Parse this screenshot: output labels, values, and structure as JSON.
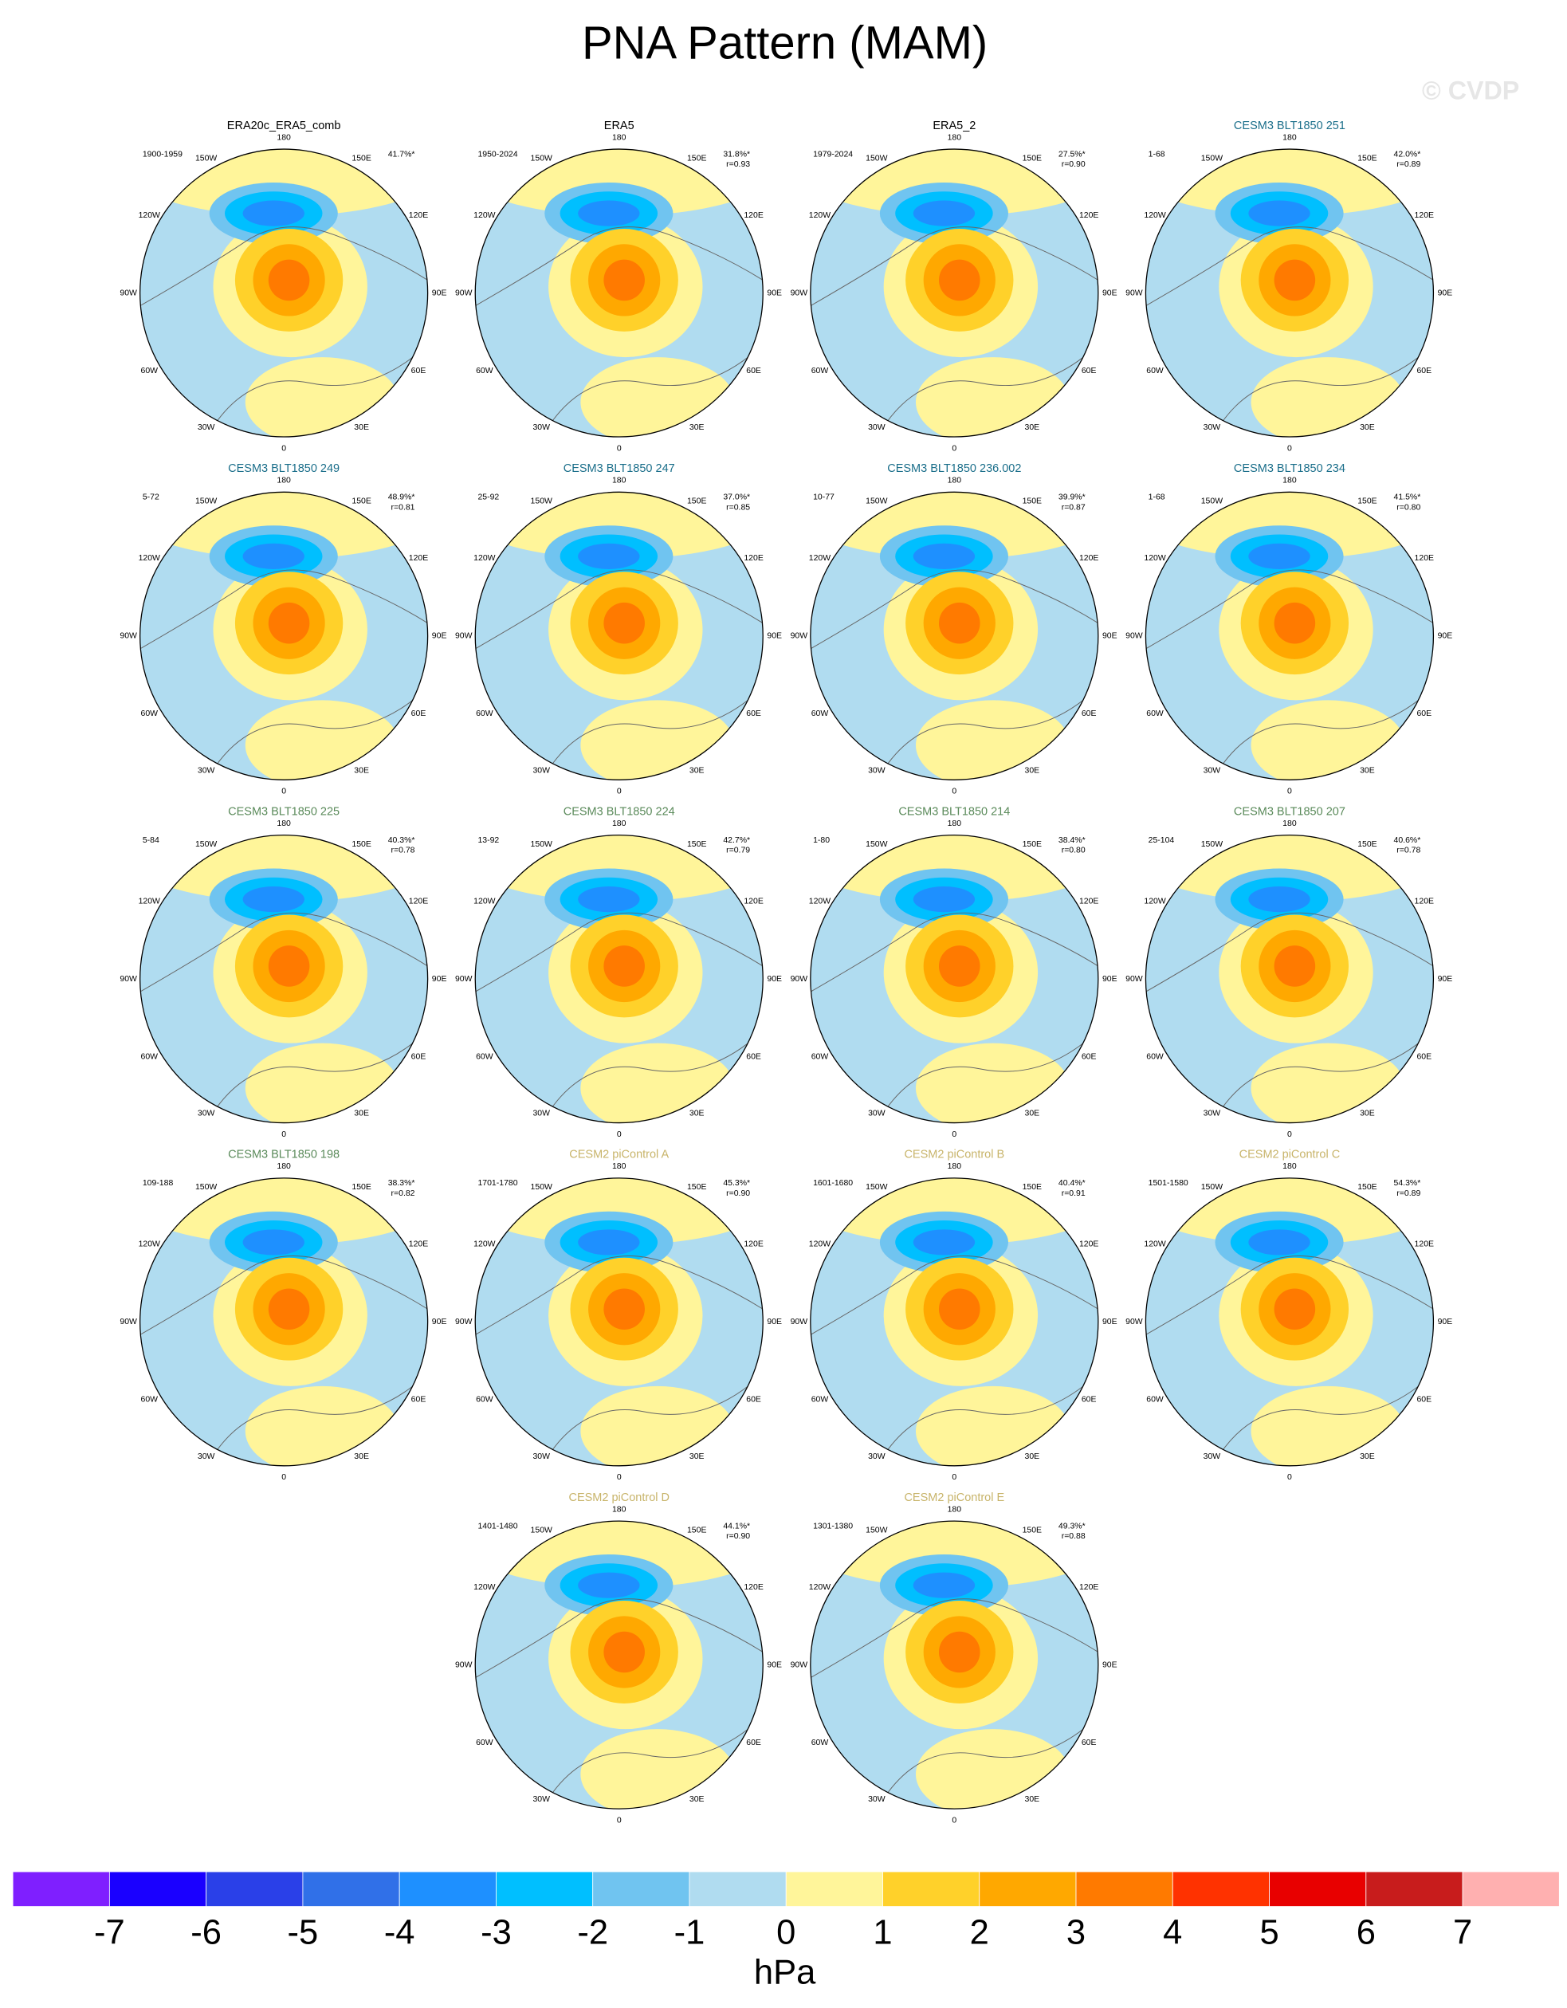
{
  "title": "PNA Pattern (MAM)",
  "watermark": "© CVDP",
  "lon_labels": [
    "180",
    "150E",
    "120E",
    "90E",
    "60E",
    "30E",
    "0",
    "30W",
    "60W",
    "90W",
    "120W",
    "150W"
  ],
  "panels": [
    {
      "title": "ERA20c_ERA5_comb",
      "color": "#000000",
      "years": "1900-1959",
      "pct": "41.7%*"
    },
    {
      "title": "ERA5",
      "color": "#000000",
      "years": "1950-2024",
      "pct": "31.8%*",
      "r": "r=0.93"
    },
    {
      "title": "ERA5_2",
      "color": "#000000",
      "years": "1979-2024",
      "pct": "27.5%*",
      "r": "r=0.90"
    },
    {
      "title": "CESM3 BLT1850 251",
      "color": "#1a6e8a",
      "years": "1-68",
      "pct": "42.0%*",
      "r": "r=0.89"
    },
    {
      "title": "CESM3 BLT1850 249",
      "color": "#1a6e8a",
      "years": "5-72",
      "pct": "48.9%*",
      "r": "r=0.81"
    },
    {
      "title": "CESM3 BLT1850 247",
      "color": "#1a6e8a",
      "years": "25-92",
      "pct": "37.0%*",
      "r": "r=0.85"
    },
    {
      "title": "CESM3 BLT1850 236.002",
      "color": "#1a6e8a",
      "years": "10-77",
      "pct": "39.9%*",
      "r": "r=0.87"
    },
    {
      "title": "CESM3 BLT1850 234",
      "color": "#1a6e8a",
      "years": "1-68",
      "pct": "41.5%*",
      "r": "r=0.80"
    },
    {
      "title": "CESM3 BLT1850 225",
      "color": "#5a8a5a",
      "years": "5-84",
      "pct": "40.3%*",
      "r": "r=0.78"
    },
    {
      "title": "CESM3 BLT1850 224",
      "color": "#5a8a5a",
      "years": "13-92",
      "pct": "42.7%*",
      "r": "r=0.79"
    },
    {
      "title": "CESM3 BLT1850 214",
      "color": "#5a8a5a",
      "years": "1-80",
      "pct": "38.4%*",
      "r": "r=0.80"
    },
    {
      "title": "CESM3 BLT1850 207",
      "color": "#5a8a5a",
      "years": "25-104",
      "pct": "40.6%*",
      "r": "r=0.78"
    },
    {
      "title": "CESM3 BLT1850 198",
      "color": "#5a8a5a",
      "years": "109-188",
      "pct": "38.3%*",
      "r": "r=0.82"
    },
    {
      "title": "CESM2 piControl A",
      "color": "#c8b46a",
      "years": "1701-1780",
      "pct": "45.3%*",
      "r": "r=0.90"
    },
    {
      "title": "CESM2 piControl B",
      "color": "#c8b46a",
      "years": "1601-1680",
      "pct": "40.4%*",
      "r": "r=0.91"
    },
    {
      "title": "CESM2 piControl C",
      "color": "#c8b46a",
      "years": "1501-1580",
      "pct": "54.3%*",
      "r": "r=0.89"
    },
    {
      "title": "CESM2 piControl D",
      "color": "#c8b46a",
      "years": "1401-1480",
      "pct": "44.1%*",
      "r": "r=0.90"
    },
    {
      "title": "CESM2 piControl E",
      "color": "#c8b46a",
      "years": "1301-1380",
      "pct": "49.3%*",
      "r": "r=0.88"
    }
  ],
  "colorbar": {
    "labels": [
      -7,
      -6,
      -5,
      -4,
      -3,
      -2,
      -1,
      0,
      1,
      2,
      3,
      4,
      5,
      6,
      7
    ],
    "colors": [
      "#7f1fff",
      "#1a00ff",
      "#2a40e8",
      "#3070e8",
      "#1e90ff",
      "#00bfff",
      "#70c4f0",
      "#b0dcf0",
      "#fff59a",
      "#ffd12a",
      "#ffa800",
      "#ff7a00",
      "#ff3200",
      "#e80000",
      "#c81c1c",
      "#ffb0b0"
    ],
    "unit": "hPa"
  }
}
